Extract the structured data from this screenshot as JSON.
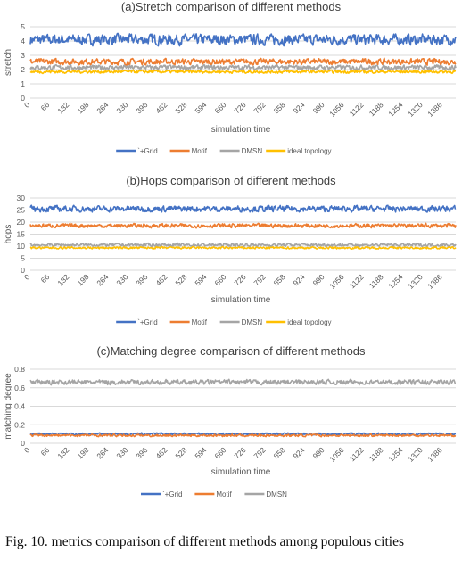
{
  "figure": {
    "caption": "Fig. 10.  metrics comparison of different methods among populous cities"
  },
  "colors": {
    "grid": "#4472C4",
    "motif": "#ED7D31",
    "dmsn": "#A5A5A5",
    "ideal": "#FFC000"
  },
  "chart_data": [
    {
      "type": "line",
      "title": "(a)Stretch comparison  of different methods",
      "xlabel": "simulation time",
      "ylabel": "stretch",
      "ylim": [
        0,
        5
      ],
      "yticks": [
        0,
        1,
        2,
        3,
        4,
        5
      ],
      "xlim": [
        0,
        1430
      ],
      "xticks": [
        0,
        66,
        132,
        198,
        264,
        330,
        396,
        462,
        528,
        594,
        660,
        726,
        792,
        858,
        924,
        990,
        1056,
        1122,
        1188,
        1254,
        1320,
        1386
      ],
      "grid": "horizontal",
      "legend": "bottom",
      "series": [
        {
          "name": "`+Grid",
          "mean": 4.1,
          "amplitude": 0.35,
          "color": "#4472C4"
        },
        {
          "name": "Motif",
          "mean": 2.55,
          "amplitude": 0.2,
          "color": "#ED7D31"
        },
        {
          "name": "DMSN",
          "mean": 2.15,
          "amplitude": 0.15,
          "color": "#A5A5A5"
        },
        {
          "name": "ideal topology",
          "mean": 1.85,
          "amplitude": 0.1,
          "color": "#FFC000"
        }
      ]
    },
    {
      "type": "line",
      "title": "(b)Hops comparison  of different methods",
      "xlabel": "simulation time",
      "ylabel": "hops",
      "ylim": [
        0,
        30
      ],
      "yticks": [
        0,
        5,
        10,
        15,
        20,
        25,
        30
      ],
      "xlim": [
        0,
        1430
      ],
      "xticks": [
        0,
        66,
        132,
        198,
        264,
        330,
        396,
        462,
        528,
        594,
        660,
        726,
        792,
        858,
        924,
        990,
        1056,
        1122,
        1188,
        1254,
        1320,
        1386
      ],
      "grid": "horizontal",
      "legend": "bottom",
      "series": [
        {
          "name": "`+Grid",
          "mean": 25.5,
          "amplitude": 1.2,
          "color": "#4472C4"
        },
        {
          "name": "Motif",
          "mean": 18.5,
          "amplitude": 0.8,
          "color": "#ED7D31"
        },
        {
          "name": "DMSN",
          "mean": 10.5,
          "amplitude": 0.6,
          "color": "#A5A5A5"
        },
        {
          "name": "ideal topology",
          "mean": 9.3,
          "amplitude": 0.4,
          "color": "#FFC000"
        }
      ]
    },
    {
      "type": "line",
      "title": "(c)Matching degree comparison  of different methods",
      "xlabel": "simulation time",
      "ylabel": "matching degree",
      "ylim": [
        0,
        0.8
      ],
      "yticks": [
        0,
        0.2,
        0.4,
        0.6,
        0.8
      ],
      "xlim": [
        0,
        1430
      ],
      "xticks": [
        0,
        66,
        132,
        198,
        264,
        330,
        396,
        462,
        528,
        594,
        660,
        726,
        792,
        858,
        924,
        990,
        1056,
        1122,
        1188,
        1254,
        1320,
        1386
      ],
      "grid": "horizontal",
      "legend": "bottom",
      "series": [
        {
          "name": "`+Grid",
          "mean": 0.1,
          "amplitude": 0.012,
          "color": "#4472C4"
        },
        {
          "name": "Motif",
          "mean": 0.085,
          "amplitude": 0.012,
          "color": "#ED7D31"
        },
        {
          "name": "DMSN",
          "mean": 0.66,
          "amplitude": 0.025,
          "color": "#A5A5A5"
        }
      ]
    }
  ]
}
